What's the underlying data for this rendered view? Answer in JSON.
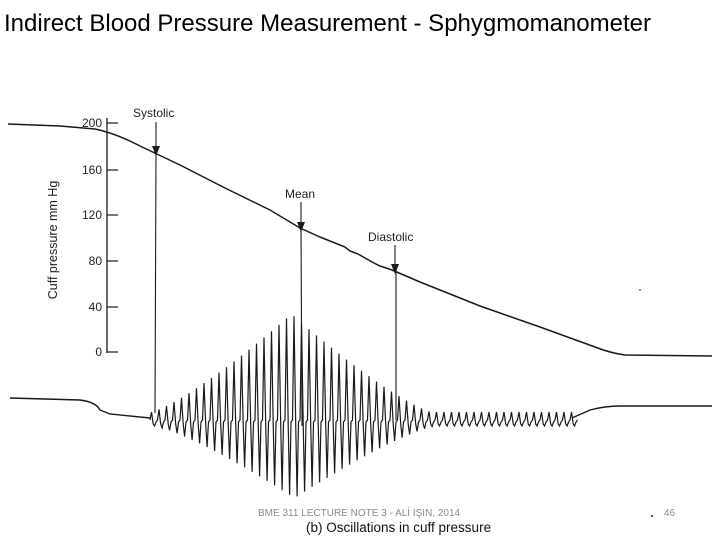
{
  "slide": {
    "title": "Indirect Blood Pressure Measurement - Sphygmomanometer",
    "footer": "BME 311 LECTURE NOTE 3 - ALİ IŞIN, 2014",
    "page_number": "46"
  },
  "figure": {
    "y_axis_title": "Cuff pressure mm Hg",
    "y_ticks": [
      "200",
      "160",
      "120",
      "80",
      "40",
      "0"
    ],
    "annotations": {
      "systolic": "Systolic",
      "mean": "Mean",
      "diastolic": "Diastolic"
    },
    "caption": "(b) Oscillations in cuff pressure"
  },
  "colors": {
    "ink": "#1a1a1a",
    "footer_text": "#8a8a8a"
  }
}
